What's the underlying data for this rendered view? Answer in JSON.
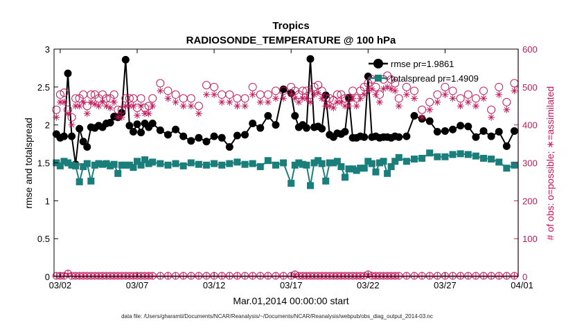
{
  "colors": {
    "rmse": "#000000",
    "spread": "#1a7f7a",
    "obs": "#c2185b",
    "axis": "#000000"
  },
  "chart_data": {
    "type": "line",
    "title": "Tropics",
    "subtitle": "RADIOSONDE_TEMPERATURE @ 100 hPa",
    "xlabel": "Mar.01,2014 00:00:00 start",
    "ylabel_left": "rmse and totalspread",
    "ylabel_right": "# of obs: o=possible; ∗=assimilated",
    "footnote": "data file: /Users/gharamti/Documents/NCAR/Reanalysis/~/Documents/NCAR/Reanalysis/webpub/obs_diag_output_2014-03.nc",
    "xlim": [
      1.6,
      31.75
    ],
    "ylim_left": [
      0,
      3
    ],
    "ylim_right": [
      0,
      600
    ],
    "x_ticks": [
      {
        "x": 2,
        "label": "03/02"
      },
      {
        "x": 7,
        "label": "03/07"
      },
      {
        "x": 12,
        "label": "03/12"
      },
      {
        "x": 17,
        "label": "03/17"
      },
      {
        "x": 22,
        "label": "03/22"
      },
      {
        "x": 27,
        "label": "03/27"
      },
      {
        "x": 32,
        "label": "04/01"
      }
    ],
    "y_ticks_left": [
      {
        "v": 0,
        "label": "0"
      },
      {
        "v": 0.5,
        "label": "0.5"
      },
      {
        "v": 1,
        "label": "1"
      },
      {
        "v": 1.5,
        "label": "1.5"
      },
      {
        "v": 2,
        "label": "2"
      },
      {
        "v": 2.5,
        "label": "2.5"
      },
      {
        "v": 3,
        "label": "3"
      }
    ],
    "y_ticks_right": [
      {
        "v": 0,
        "label": "0"
      },
      {
        "v": 100,
        "label": "100"
      },
      {
        "v": 200,
        "label": "200"
      },
      {
        "v": 300,
        "label": "300"
      },
      {
        "v": 400,
        "label": "400"
      },
      {
        "v": 500,
        "label": "500"
      },
      {
        "v": 600,
        "label": "600"
      }
    ],
    "series": [
      {
        "name": "rmse",
        "legend": "rmse pr=1.9861",
        "axis": "left",
        "x": [
          1.75,
          2,
          2.25,
          2.5,
          2.75,
          3,
          3.25,
          3.5,
          3.75,
          4,
          4.25,
          4.5,
          4.75,
          5,
          5.25,
          5.5,
          5.75,
          6,
          6.25,
          6.5,
          6.75,
          7,
          7.25,
          7.5,
          7.75,
          8,
          8.5,
          9,
          9.5,
          10,
          10.5,
          11,
          11.5,
          12,
          12.5,
          13,
          13.5,
          14,
          14.5,
          15,
          15.5,
          16,
          16.5,
          17,
          17.25,
          17.5,
          17.75,
          18,
          18.25,
          18.5,
          18.75,
          19,
          19.25,
          19.5,
          19.75,
          20,
          20.25,
          20.5,
          20.75,
          21,
          21.25,
          21.5,
          21.75,
          22,
          22.25,
          22.5,
          22.75,
          23,
          23.25,
          23.5,
          23.75,
          24,
          24.5,
          25,
          25.5,
          26,
          26.5,
          27,
          27.5,
          28,
          28.5,
          29,
          29.5,
          30,
          30.5,
          31,
          31.5
        ],
        "y": [
          1.88,
          1.83,
          1.85,
          2.68,
          1.85,
          1.48,
          1.95,
          1.78,
          1.71,
          1.97,
          1.96,
          1.99,
          1.97,
          2.02,
          2.03,
          2.11,
          2.1,
          2.16,
          2.86,
          1.99,
          1.91,
          2.01,
          1.9,
          2.02,
          1.97,
          2.02,
          1.93,
          1.87,
          1.94,
          1.85,
          1.79,
          1.83,
          1.78,
          1.85,
          1.83,
          1.71,
          1.86,
          1.87,
          2.02,
          1.96,
          2.12,
          2,
          2.47,
          2.42,
          2.12,
          1.97,
          2,
          1.96,
          2.87,
          1.97,
          1.98,
          1.95,
          2.39,
          1.87,
          1.84,
          1.89,
          1.88,
          1.91,
          2.36,
          1.83,
          1.83,
          1.85,
          1.84,
          2.64,
          1.84,
          1.85,
          1.83,
          1.84,
          1.84,
          1.83,
          1.85,
          1.84,
          1.85,
          2.12,
          2.08,
          2.05,
          1.91,
          1.92,
          1.94,
          1.99,
          1.98,
          1.84,
          1.92,
          1.85,
          1.91,
          1.72,
          1.92
        ]
      },
      {
        "name": "totalspread",
        "legend": "totalspread pr=1.4909",
        "axis": "left",
        "x": [
          1.75,
          2,
          2.25,
          2.5,
          2.75,
          3,
          3.25,
          3.5,
          3.75,
          4,
          4.25,
          4.5,
          4.75,
          5,
          5.25,
          5.5,
          5.75,
          6,
          6.25,
          6.5,
          6.75,
          7,
          7.25,
          7.5,
          7.75,
          8,
          8.5,
          9,
          9.5,
          10,
          10.5,
          11,
          11.5,
          12,
          12.5,
          13,
          13.5,
          14,
          14.5,
          15,
          15.5,
          16,
          16.5,
          17,
          17.25,
          17.5,
          17.75,
          18,
          18.25,
          18.5,
          18.75,
          19,
          19.25,
          19.5,
          19.75,
          20,
          20.25,
          20.5,
          20.75,
          21,
          21.25,
          21.5,
          21.75,
          22,
          22.25,
          22.5,
          22.75,
          23,
          23.25,
          23.5,
          23.75,
          24,
          24.5,
          25,
          25.5,
          26,
          26.5,
          27,
          27.5,
          28,
          28.5,
          29,
          29.5,
          30,
          30.5,
          31,
          31.5
        ],
        "y": [
          1.5,
          1.46,
          1.52,
          1.5,
          1.47,
          1.46,
          1.25,
          1.45,
          1.49,
          1.26,
          1.47,
          1.49,
          1.48,
          1.49,
          1.46,
          1.48,
          1.36,
          1.47,
          1.47,
          1.47,
          1.44,
          1.52,
          1.47,
          1.54,
          1.49,
          1.51,
          1.49,
          1.47,
          1.49,
          1.46,
          1.5,
          1.48,
          1.47,
          1.49,
          1.47,
          1.49,
          1.51,
          1.48,
          1.49,
          1.45,
          1.53,
          1.47,
          1.5,
          1.23,
          1.47,
          1.5,
          1.48,
          1.47,
          1.2,
          1.5,
          1.53,
          1.49,
          1.26,
          1.5,
          1.5,
          1.52,
          1.45,
          1.31,
          1.42,
          1.42,
          1.4,
          1.43,
          1.43,
          1.52,
          1.49,
          1.38,
          1.5,
          1.52,
          1.36,
          1.45,
          1.52,
          1.57,
          1.52,
          1.55,
          1.56,
          1.63,
          1.58,
          1.58,
          1.61,
          1.62,
          1.61,
          1.59,
          1.56,
          1.55,
          1.51,
          1.43,
          1.47
        ]
      },
      {
        "name": "possible",
        "legend": "",
        "axis": "right",
        "marker": "circle",
        "x": [
          1.75,
          2,
          2.25,
          2.5,
          2.75,
          3,
          3.25,
          3.5,
          3.75,
          4,
          4.25,
          4.5,
          4.75,
          5,
          5.25,
          5.5,
          5.75,
          6,
          6.25,
          6.5,
          6.75,
          7,
          7.25,
          7.5,
          7.75,
          8,
          8.5,
          9,
          9.5,
          10,
          10.5,
          11,
          11.5,
          12,
          12.5,
          13,
          13.5,
          14,
          14.5,
          15,
          15.5,
          16,
          16.5,
          17,
          17.25,
          17.5,
          17.75,
          18,
          18.25,
          18.5,
          18.75,
          19,
          19.25,
          19.5,
          19.75,
          20,
          20.25,
          20.5,
          20.75,
          21,
          21.25,
          21.5,
          21.75,
          22,
          22.25,
          22.5,
          22.75,
          23,
          23.25,
          23.5,
          23.75,
          24,
          24.5,
          25,
          25.5,
          26,
          26.5,
          27,
          27.5,
          28,
          28.5,
          29,
          29.5,
          30,
          30.5,
          31,
          31.5
        ],
        "y": [
          440,
          480,
          485,
          440,
          420,
          470,
          470,
          480,
          450,
          480,
          480,
          470,
          480,
          470,
          470,
          480,
          440,
          440,
          470,
          470,
          470,
          445,
          470,
          445,
          450,
          470,
          510,
          490,
          480,
          470,
          470,
          450,
          505,
          500,
          480,
          480,
          470,
          470,
          500,
          480,
          480,
          490,
          490,
          500,
          490,
          480,
          490,
          490,
          480,
          500,
          505,
          490,
          470,
          470,
          465,
          480,
          480,
          470,
          470,
          490,
          470,
          490,
          500,
          510,
          520,
          500,
          480,
          520,
          530,
          520,
          510,
          470,
          500,
          490,
          440,
          460,
          480,
          500,
          490,
          470,
          480,
          470,
          490,
          440,
          500,
          460,
          510
        ]
      },
      {
        "name": "assimilated",
        "legend": "",
        "axis": "right",
        "marker": "star",
        "x": [
          1.75,
          2,
          2.25,
          2.5,
          2.75,
          3,
          3.25,
          3.5,
          3.75,
          4,
          4.25,
          4.5,
          4.75,
          5,
          5.25,
          5.5,
          5.75,
          6,
          6.25,
          6.5,
          6.75,
          7,
          7.25,
          7.5,
          7.75,
          8,
          8.5,
          9,
          9.5,
          10,
          10.5,
          11,
          11.5,
          12,
          12.5,
          13,
          13.5,
          14,
          14.5,
          15,
          15.5,
          16,
          16.5,
          17,
          17.25,
          17.5,
          17.75,
          18,
          18.25,
          18.5,
          18.75,
          19,
          19.25,
          19.5,
          19.75,
          20,
          20.25,
          20.5,
          20.75,
          21,
          21.25,
          21.5,
          21.75,
          22,
          22.25,
          22.5,
          22.75,
          23,
          23.25,
          23.5,
          23.75,
          24,
          24.5,
          25,
          25.5,
          26,
          26.5,
          27,
          27.5,
          28,
          28.5,
          29,
          29.5,
          30,
          30.5,
          31,
          31.5
        ],
        "y": [
          420,
          460,
          460,
          430,
          400,
          450,
          450,
          460,
          430,
          460,
          455,
          450,
          460,
          450,
          445,
          460,
          420,
          420,
          450,
          450,
          450,
          425,
          450,
          430,
          430,
          450,
          490,
          470,
          460,
          450,
          450,
          430,
          480,
          480,
          460,
          460,
          450,
          450,
          480,
          460,
          460,
          470,
          470,
          480,
          470,
          460,
          470,
          470,
          460,
          480,
          485,
          470,
          450,
          450,
          445,
          460,
          460,
          450,
          450,
          470,
          450,
          470,
          480,
          490,
          495,
          480,
          460,
          495,
          500,
          495,
          490,
          450,
          480,
          470,
          420,
          440,
          460,
          480,
          470,
          450,
          460,
          450,
          470,
          420,
          480,
          440,
          490
        ]
      },
      {
        "name": "rejected",
        "legend": "",
        "axis": "right",
        "marker": "circle-plus",
        "x": [
          1.75,
          2,
          2.25,
          2.5,
          2.75,
          3,
          3.25,
          3.5,
          3.75,
          4,
          4.25,
          4.5,
          4.75,
          5,
          5.25,
          5.5,
          5.75,
          6,
          6.25,
          6.5,
          6.75,
          7,
          7.25,
          7.5,
          7.75,
          8,
          8.5,
          9,
          9.5,
          10,
          10.5,
          11,
          11.5,
          12,
          12.5,
          13,
          13.5,
          14,
          14.5,
          15,
          15.5,
          16,
          16.5,
          17,
          17.25,
          17.5,
          17.75,
          18,
          18.25,
          18.5,
          18.75,
          19,
          19.25,
          19.5,
          19.75,
          20,
          20.25,
          20.5,
          20.75,
          21,
          21.25,
          21.5,
          21.75,
          22,
          22.25,
          22.5,
          22.75,
          23,
          23.25,
          23.5,
          23.75,
          24,
          24.5,
          25,
          25.5,
          26,
          26.5,
          27,
          27.5,
          28,
          28.5,
          29,
          29.5,
          30,
          30.5,
          31,
          31.5
        ],
        "y": [
          2,
          2,
          2,
          8,
          2,
          2,
          2,
          2,
          2,
          2,
          2,
          2,
          2,
          2,
          2,
          2,
          2,
          2,
          2,
          2,
          2,
          2,
          2,
          2,
          2,
          2,
          2,
          2,
          2,
          2,
          2,
          2,
          2,
          2,
          2,
          2,
          2,
          2,
          2,
          2,
          2,
          2,
          2,
          2,
          6,
          2,
          2,
          2,
          2,
          2,
          2,
          2,
          2,
          2,
          2,
          2,
          2,
          2,
          2,
          2,
          2,
          2,
          2,
          6,
          2,
          2,
          2,
          2,
          2,
          2,
          2,
          2,
          2,
          2,
          2,
          2,
          2,
          2,
          2,
          2,
          2,
          2,
          2,
          2,
          2,
          2,
          2
        ]
      }
    ]
  }
}
